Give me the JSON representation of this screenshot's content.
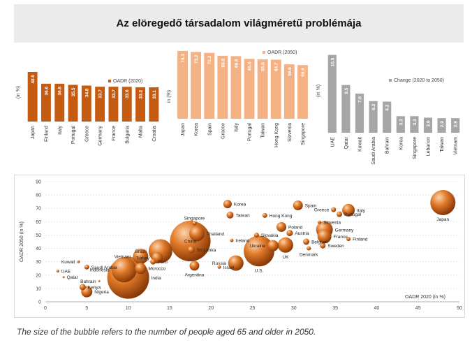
{
  "title": "Az elöregedő társadalom világméretű problémája",
  "caption": "The size of the bubble refers to the number of people aged 65 and older in 2050.",
  "chart_data": [
    {
      "type": "bar",
      "ylabel": "(in %)",
      "legend": "OADR (2020)",
      "color": "#c55a11",
      "categories": [
        "Japan",
        "Finland",
        "Italy",
        "Portugal",
        "Greece",
        "Germany",
        "France",
        "Bulgaria",
        "Malta",
        "Croatia"
      ],
      "values": [
        48.0,
        36.6,
        36.6,
        35.5,
        34.8,
        33.7,
        33.7,
        33.6,
        33.2,
        33.1
      ],
      "value_labels": [
        "48.0",
        "36.6",
        "36.6",
        "35.5",
        "34.8",
        "33.7",
        "33.7",
        "33.6",
        "33.2",
        "33.1"
      ]
    },
    {
      "type": "bar",
      "ylabel": "in (%)",
      "legend": "OADR (2050)",
      "color": "#f4b183",
      "categories": [
        "Japan",
        "Korea",
        "Spain",
        "Greece",
        "Italy",
        "Portugal",
        "Taiwan",
        "Hong Kong",
        "Slovenia",
        "Singapore"
      ],
      "values": [
        74.3,
        73.2,
        72.2,
        69.0,
        68.6,
        65.6,
        65.0,
        64.7,
        59.6,
        58.8
      ],
      "value_labels": [
        "74.3",
        "73.2",
        "72.2",
        "69.0",
        "68.6",
        "65.6",
        "65.0",
        "64.7",
        "59.6",
        "58.8"
      ]
    },
    {
      "type": "bar",
      "ylabel": "(in %)",
      "legend": "Change (2020 to 2050)",
      "color": "#a6a6a6",
      "categories": [
        "UAE",
        "Qatar",
        "Kuwait",
        "Saudi Arabia",
        "Bahrain",
        "Korea",
        "Singapore",
        "Lebanon",
        "Taiwan",
        "Vietnam"
      ],
      "values": [
        15.5,
        9.5,
        7.8,
        6.3,
        6.2,
        3.3,
        3.3,
        3.0,
        2.9,
        2.9
      ],
      "value_labels": [
        "15.5",
        "9.5",
        "7.8",
        "6.3",
        "6.2",
        "3.3",
        "3.3",
        "3.0",
        "2.9",
        "2.9"
      ]
    },
    {
      "type": "scatter",
      "xlabel": "OADR 2020 (in %)",
      "ylabel": "OADR 2050 (in %)",
      "xlim": [
        0,
        50
      ],
      "ylim": [
        0,
        90
      ],
      "xticks": [
        "0",
        "5",
        "10",
        "15",
        "20",
        "25",
        "30",
        "35",
        "40",
        "45",
        "50"
      ],
      "yticks": [
        "0",
        "10",
        "20",
        "30",
        "40",
        "50",
        "60",
        "70",
        "80",
        "90"
      ],
      "points": [
        {
          "label": "Japan",
          "x": 48.0,
          "y": 74.3,
          "size": 36,
          "label_pos": "below"
        },
        {
          "label": "Korea",
          "x": 22.0,
          "y": 73.2,
          "size": 12,
          "label_pos": "right"
        },
        {
          "label": "Spain",
          "x": 30.5,
          "y": 72.2,
          "size": 14,
          "label_pos": "right"
        },
        {
          "label": "Italy",
          "x": 36.6,
          "y": 68.6,
          "size": 18,
          "label_pos": "right"
        },
        {
          "label": "Greece",
          "x": 34.8,
          "y": 69.0,
          "size": 7,
          "label_pos": "left"
        },
        {
          "label": "Portugal",
          "x": 35.5,
          "y": 65.6,
          "size": 8,
          "label_pos": "right"
        },
        {
          "label": "Taiwan",
          "x": 22.3,
          "y": 65.0,
          "size": 10,
          "label_pos": "right"
        },
        {
          "label": "Hong Kong",
          "x": 26.5,
          "y": 64.7,
          "size": 7,
          "label_pos": "right"
        },
        {
          "label": "Singapore",
          "x": 18.0,
          "y": 58.8,
          "size": 6,
          "label_pos": "above"
        },
        {
          "label": "Slovenia",
          "x": 33.1,
          "y": 59.6,
          "size": 5,
          "label_pos": "right"
        },
        {
          "label": "Poland",
          "x": 28.5,
          "y": 56.0,
          "size": 14,
          "label_pos": "right"
        },
        {
          "label": "Germany",
          "x": 33.7,
          "y": 54.0,
          "size": 24,
          "label_pos": "right"
        },
        {
          "label": "Austria",
          "x": 29.5,
          "y": 51.5,
          "size": 9,
          "label_pos": "right"
        },
        {
          "label": "Slovakia",
          "x": 25.5,
          "y": 50.0,
          "size": 7,
          "label_pos": "right"
        },
        {
          "label": "Thailand",
          "x": 18.3,
          "y": 51.0,
          "size": 22,
          "label_pos": "right"
        },
        {
          "label": "France",
          "x": 33.7,
          "y": 49.0,
          "size": 20,
          "label_pos": "right"
        },
        {
          "label": "Finland",
          "x": 36.6,
          "y": 47.0,
          "size": 6,
          "label_pos": "right"
        },
        {
          "label": "Ireland",
          "x": 22.5,
          "y": 46.0,
          "size": 5,
          "label_pos": "right"
        },
        {
          "label": "Belgium",
          "x": 31.5,
          "y": 45.0,
          "size": 9,
          "label_pos": "right"
        },
        {
          "label": "China",
          "x": 17.5,
          "y": 45.5,
          "size": 58,
          "label_pos": "center"
        },
        {
          "label": "Ukraine",
          "x": 27.5,
          "y": 42.0,
          "size": 16,
          "label_pos": "left"
        },
        {
          "label": "Sweden",
          "x": 33.5,
          "y": 42.0,
          "size": 8,
          "label_pos": "right"
        },
        {
          "label": "UK",
          "x": 29.0,
          "y": 42.5,
          "size": 22,
          "label_pos": "below"
        },
        {
          "label": "Denmark",
          "x": 31.8,
          "y": 40.0,
          "size": 6,
          "label_pos": "below"
        },
        {
          "label": "Brazil",
          "x": 13.9,
          "y": 38.0,
          "size": 34,
          "label_pos": "left"
        },
        {
          "label": "Sri Lanka",
          "x": 17.6,
          "y": 39.0,
          "size": 10,
          "label_pos": "right"
        },
        {
          "label": "U.S.",
          "x": 25.8,
          "y": 38.0,
          "size": 44,
          "label_pos": "below"
        },
        {
          "label": "Vietnam",
          "x": 11.5,
          "y": 34.0,
          "size": 22,
          "label_pos": "left"
        },
        {
          "label": "Turkey",
          "x": 13.5,
          "y": 33.0,
          "size": 16,
          "label_pos": "left"
        },
        {
          "label": "Peru",
          "x": 13.0,
          "y": 30.0,
          "size": 8,
          "label_pos": "right"
        },
        {
          "label": "Russia",
          "x": 23.0,
          "y": 29.0,
          "size": 22,
          "label_pos": "left"
        },
        {
          "label": "Argentina",
          "x": 18.0,
          "y": 27.0,
          "size": 14,
          "label_pos": "below"
        },
        {
          "label": "Israel",
          "x": 21.0,
          "y": 26.0,
          "size": 5,
          "label_pos": "right"
        },
        {
          "label": "Saudi Arabia",
          "x": 5.0,
          "y": 26.0,
          "size": 7,
          "label_pos": "right"
        },
        {
          "label": "Morocco",
          "x": 11.5,
          "y": 25.0,
          "size": 16,
          "label_pos": "right"
        },
        {
          "label": "Indonesia",
          "x": 9.5,
          "y": 24.0,
          "size": 36,
          "label_pos": "left"
        },
        {
          "label": "Kuwait",
          "x": 4.0,
          "y": 30.0,
          "size": 4,
          "label_pos": "left"
        },
        {
          "label": "UAE",
          "x": 1.5,
          "y": 23.0,
          "size": 4,
          "label_pos": "right"
        },
        {
          "label": "Qatar",
          "x": 2.2,
          "y": 18.5,
          "size": 3,
          "label_pos": "right"
        },
        {
          "label": "India",
          "x": 10.0,
          "y": 18.0,
          "size": 60,
          "label_pos": "right"
        },
        {
          "label": "Bahrain",
          "x": 6.5,
          "y": 15.5,
          "size": 3,
          "label_pos": "left"
        },
        {
          "label": "Kenya",
          "x": 4.5,
          "y": 11.0,
          "size": 9,
          "label_pos": "right"
        },
        {
          "label": "Nigeria",
          "x": 5.0,
          "y": 7.5,
          "size": 16,
          "label_pos": "right"
        }
      ]
    }
  ]
}
